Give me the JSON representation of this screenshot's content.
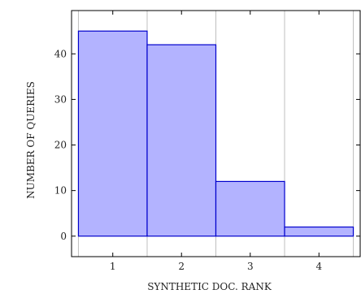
{
  "chart_data": {
    "type": "bar",
    "categories": [
      "1",
      "2",
      "3",
      "4"
    ],
    "values": [
      45,
      42,
      12,
      2
    ],
    "title": "",
    "xlabel": "SYNTHETIC DOC. RANK",
    "ylabel": "NUMBER OF QUERIES",
    "xlim": [
      0.4,
      4.6
    ],
    "ylim": [
      -4.5,
      49.5
    ],
    "yticks": [
      0,
      10,
      20,
      30,
      40
    ],
    "grid": "vertical",
    "legend": "none",
    "colors": {
      "bar_fill": "#b3b3ff",
      "bar_stroke": "#0000cc",
      "grid": "#bfbfbf",
      "axis": "#000000"
    }
  }
}
